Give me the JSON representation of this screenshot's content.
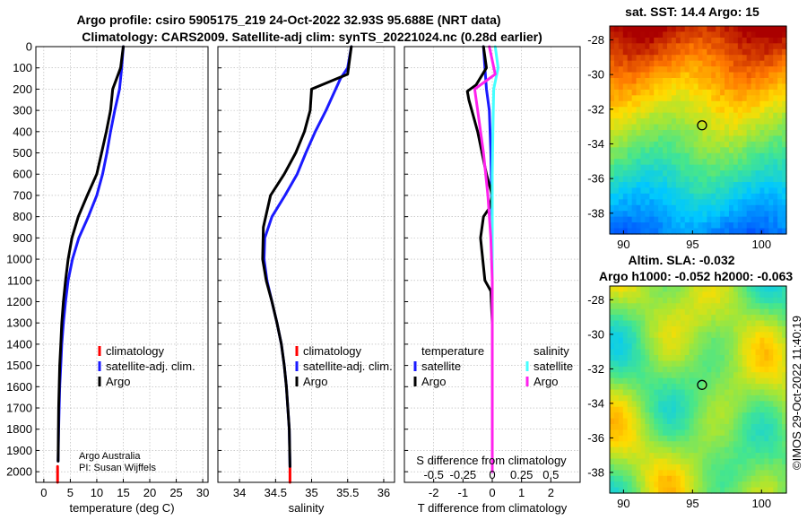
{
  "header": {
    "title_line1": "Argo profile: csiro 5905175_219 24-Oct-2022 32.93S 95.688E (NRT data)",
    "title_line2": "Climatology: CARS2009. Satellite-adj clim: synTS_20221024.nc (0.28d earlier)"
  },
  "colors": {
    "climatology": "#ff0000",
    "satellite": "#1a1aff",
    "argo": "#000000",
    "temp_argo": "#000000",
    "temp_satellite": "#1a1aff",
    "sal_argo": "#ff22ee",
    "sal_satellite": "#44ffff",
    "grid": "#b0b0b0"
  },
  "depth_axis": {
    "range": [
      0,
      2050
    ],
    "ticks": [
      0,
      100,
      200,
      300,
      400,
      500,
      600,
      700,
      800,
      900,
      1000,
      1100,
      1200,
      1300,
      1400,
      1500,
      1600,
      1700,
      1800,
      1900,
      2000
    ]
  },
  "legend1": {
    "items": [
      {
        "label": "climatology",
        "color_key": "climatology"
      },
      {
        "label": "satellite-adj. clim.",
        "color_key": "satellite"
      },
      {
        "label": "Argo",
        "color_key": "argo"
      }
    ]
  },
  "legend3": {
    "temp_heading": "temperature",
    "sal_heading": "salinity",
    "temp_items": [
      {
        "label": "satellite",
        "color_key": "temp_satellite"
      },
      {
        "label": "Argo",
        "color_key": "temp_argo"
      }
    ],
    "sal_items": [
      {
        "label": "satellite",
        "color_key": "sal_satellite"
      },
      {
        "label": "Argo",
        "color_key": "sal_argo"
      }
    ]
  },
  "credits": {
    "line1": "Argo Australia",
    "line2": "PI: Susan Wijffels"
  },
  "maps": {
    "sst_title": "sat. SST: 14.4 Argo: 15",
    "sla_title1": "Altim. SLA: -0.032",
    "sla_title2": "Argo h1000: -0.052 h2000: -0.063",
    "lat_ticks": [
      -28,
      -30,
      -32,
      -34,
      -36,
      -38
    ],
    "lon_ticks": [
      90,
      95,
      100
    ],
    "lat_range": [
      -39.2,
      -27.2
    ],
    "lon_range": [
      89.0,
      101.8
    ],
    "profile_position": {
      "lon": 95.688,
      "lat": -32.93
    },
    "footer": "©IMOS 29-Oct-2022 11:40:19"
  },
  "chart_data": [
    {
      "type": "line",
      "title": "",
      "xlabel": "temperature (deg C)",
      "ylabel": "",
      "xlim": [
        -1.5,
        31
      ],
      "ylim": [
        2050,
        0
      ],
      "xticks": [
        0,
        5,
        10,
        15,
        20,
        25,
        30
      ],
      "y_inverted": true,
      "series": [
        {
          "name": "climatology",
          "color_key": "climatology",
          "x": [
            2.6,
            2.6
          ],
          "y": [
            1975,
            2050
          ]
        },
        {
          "name": "satellite-adj. clim.",
          "color_key": "satellite",
          "x": [
            15.0,
            14.7,
            14.3,
            13.4,
            12.6,
            11.9,
            11.1,
            10.0,
            8.4,
            6.6,
            5.4,
            4.6,
            4.1,
            3.7,
            3.4,
            3.2,
            3.0,
            2.9,
            2.8,
            2.7
          ],
          "y": [
            0,
            100,
            200,
            300,
            400,
            500,
            600,
            700,
            800,
            900,
            1000,
            1100,
            1200,
            1300,
            1400,
            1500,
            1600,
            1700,
            1800,
            1950
          ]
        },
        {
          "name": "Argo",
          "color_key": "argo",
          "x": [
            15.0,
            14.5,
            13.0,
            12.6,
            11.8,
            10.9,
            10.0,
            8.2,
            6.5,
            5.3,
            4.6,
            4.1,
            3.7,
            3.4,
            3.2,
            3.0,
            2.9,
            2.8,
            2.7
          ],
          "y": [
            0,
            100,
            200,
            300,
            400,
            500,
            600,
            700,
            800,
            900,
            1000,
            1100,
            1200,
            1300,
            1400,
            1500,
            1600,
            1700,
            1950
          ]
        }
      ]
    },
    {
      "type": "line",
      "title": "",
      "xlabel": "salinity",
      "ylabel": "",
      "xlim": [
        33.7,
        36.15
      ],
      "ylim": [
        2050,
        0
      ],
      "xticks": [
        34,
        34.5,
        35,
        35.5,
        36
      ],
      "y_inverted": true,
      "series": [
        {
          "name": "climatology",
          "color_key": "climatology",
          "x": [
            34.7,
            34.7
          ],
          "y": [
            1975,
            2050
          ]
        },
        {
          "name": "satellite-adj. clim.",
          "color_key": "satellite",
          "x": [
            35.55,
            35.5,
            35.4,
            35.2,
            35.05,
            34.92,
            34.8,
            34.63,
            34.45,
            34.35,
            34.34,
            34.38,
            34.45,
            34.52,
            34.58,
            34.62,
            34.65,
            34.67,
            34.69,
            34.7
          ],
          "y": [
            0,
            100,
            150,
            300,
            400,
            500,
            600,
            700,
            800,
            900,
            1000,
            1100,
            1200,
            1300,
            1400,
            1500,
            1600,
            1700,
            1800,
            1975
          ]
        },
        {
          "name": "Argo",
          "color_key": "argo",
          "x": [
            35.55,
            35.5,
            35.0,
            34.98,
            34.9,
            34.78,
            34.62,
            34.43,
            34.33,
            34.32,
            34.37,
            34.45,
            34.52,
            34.58,
            34.62,
            34.65,
            34.67,
            34.69,
            34.7
          ],
          "y": [
            0,
            130,
            200,
            300,
            400,
            500,
            600,
            700,
            850,
            1000,
            1100,
            1200,
            1300,
            1400,
            1500,
            1600,
            1700,
            1800,
            1975
          ]
        }
      ]
    },
    {
      "type": "line",
      "title": "",
      "xlabel": "T difference from climatology",
      "xlabel_top": "S difference from climatology",
      "ylabel": "",
      "xlim": [
        -3,
        3
      ],
      "ylim": [
        2050,
        0
      ],
      "xticks": [
        -2,
        -1,
        0,
        1,
        2
      ],
      "xtick_labels": [
        "-2",
        "-1",
        "0",
        "1",
        "2"
      ],
      "xticks_top": [
        -2,
        -1,
        0,
        1,
        2
      ],
      "xtick_labels_top": [
        "-0.5",
        "-0.25",
        "0",
        "0.25",
        "0.5"
      ],
      "y_inverted": true,
      "series": [
        {
          "name": "temperature satellite",
          "color_key": "temp_satellite",
          "x": [
            -0.3,
            -0.25,
            -0.2,
            -0.1,
            -0.05,
            -0.02,
            0.0,
            0.0,
            0.0
          ],
          "y": [
            0,
            100,
            200,
            300,
            500,
            700,
            900,
            1200,
            2000
          ]
        },
        {
          "name": "temperature Argo",
          "color_key": "temp_argo",
          "x": [
            -0.3,
            -0.2,
            -0.55,
            -0.85,
            -0.8,
            -0.5,
            -0.2,
            0.0,
            -0.1,
            -0.3,
            -0.4,
            -0.25,
            -0.05,
            0.0,
            0.0
          ],
          "y": [
            0,
            100,
            180,
            210,
            250,
            400,
            600,
            700,
            760,
            800,
            900,
            1100,
            1150,
            1300,
            2000
          ]
        },
        {
          "name": "salinity satellite",
          "color_key": "sal_satellite",
          "x": [
            0.1,
            0.2,
            0.05,
            0.02,
            0.0,
            0.0,
            0.0
          ],
          "y": [
            0,
            100,
            200,
            400,
            600,
            1000,
            2000
          ]
        },
        {
          "name": "salinity Argo",
          "color_key": "sal_argo",
          "x": [
            -0.1,
            0.1,
            -0.6,
            -0.5,
            -0.3,
            -0.15,
            -0.05,
            0.0,
            0.0
          ],
          "y": [
            0,
            130,
            200,
            300,
            500,
            700,
            900,
            1100,
            2000
          ]
        }
      ]
    }
  ]
}
